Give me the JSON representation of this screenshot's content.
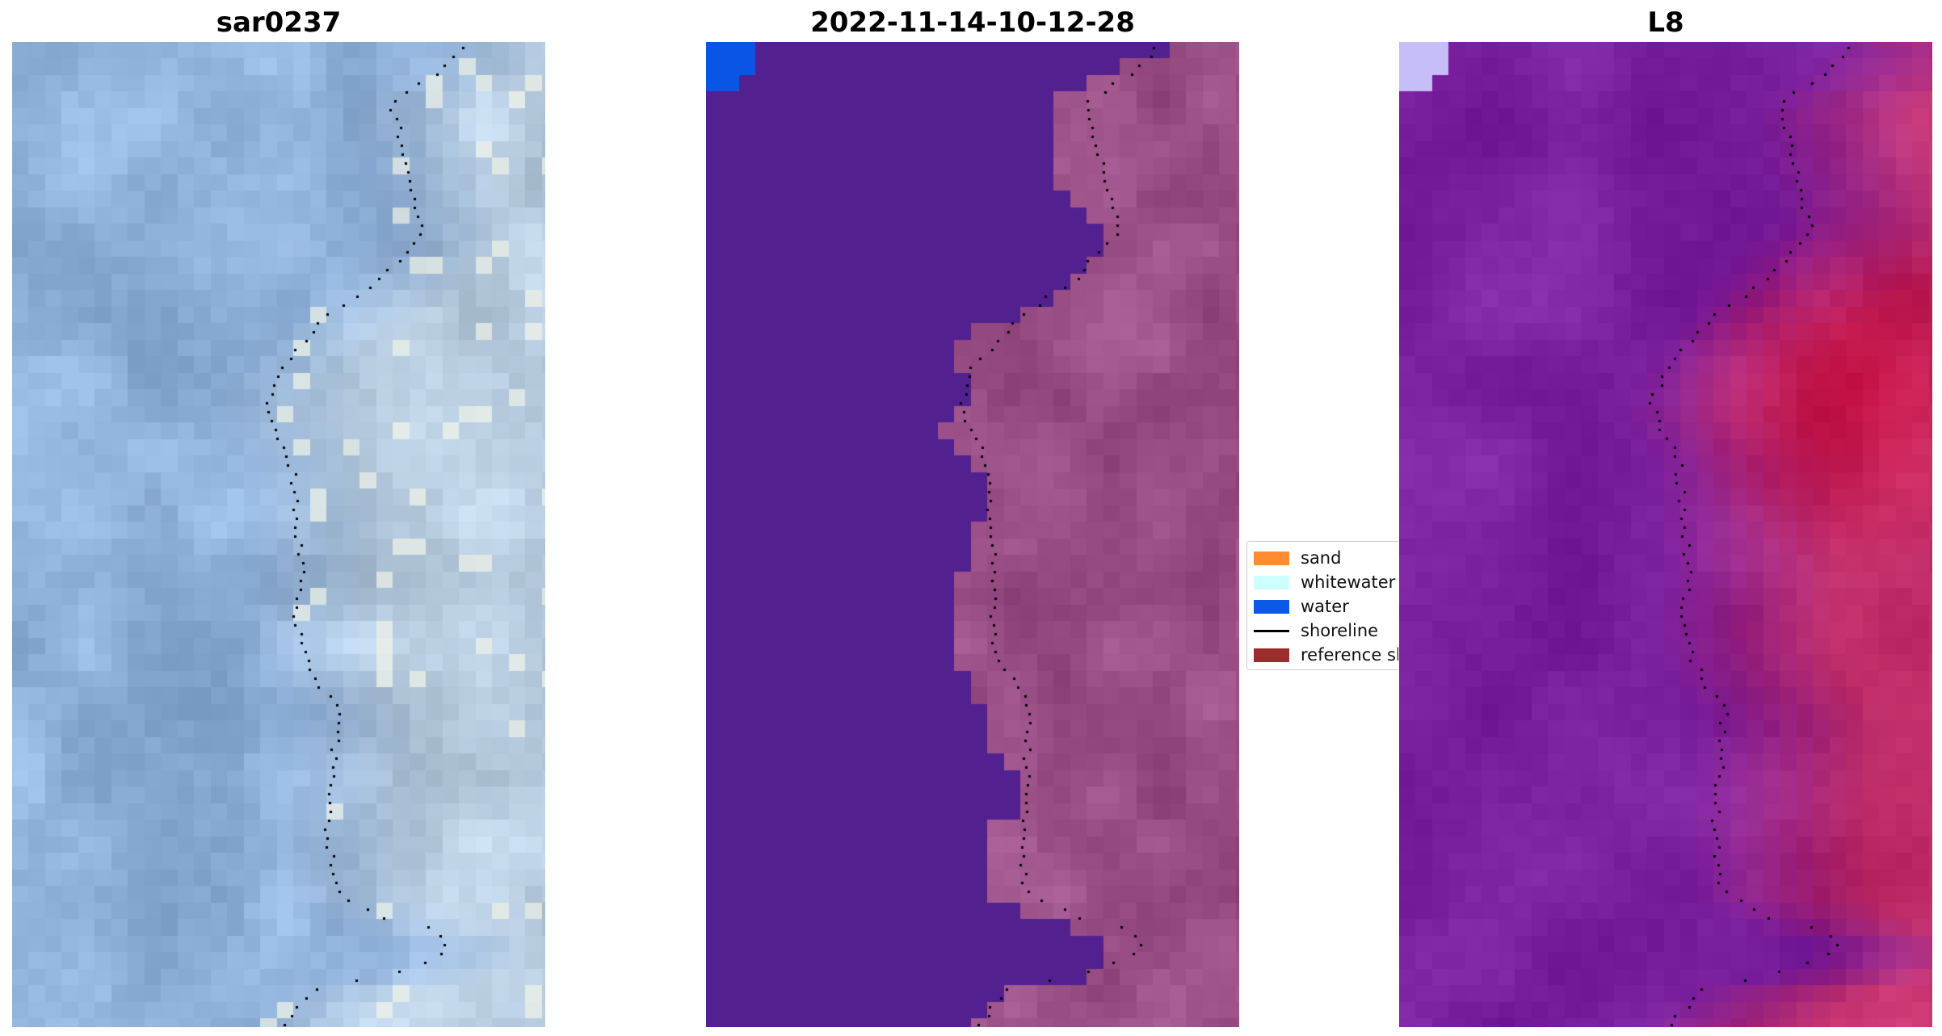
{
  "chart_data": [
    {
      "type": "heatmap",
      "title": "sar0237",
      "content": "satellite RGB image (blue-grey water on left, lighter sand/whitewater on right) with detected shoreline drawn as black dotted line",
      "palette": {
        "water": "#8fb0d3",
        "land": "#c3d5dd"
      },
      "axis": "off"
    },
    {
      "type": "heatmap",
      "title": "2022-11-14-10-12-28",
      "content": "classified image: water pixels in purple-blue, land pixels in muted magenta, a few bright water pixels at top-left; shoreline dotted",
      "palette": {
        "class_water": "#53208f",
        "land": "#9a4f86",
        "water_legend": "#0a55e6"
      },
      "axis": "off"
    },
    {
      "type": "heatmap",
      "title": "L8",
      "content": "MNDWI-style index image: purple to crimson gradient (water purple, land crimson), shoreline dotted",
      "palette": {
        "water": "#7a1f9e",
        "land": "#c22f6a",
        "hotspot": "#c30b3d"
      },
      "axis": "off"
    }
  ],
  "legend": {
    "items": [
      {
        "label": "sand",
        "color": "#ff8c32",
        "kind": "patch"
      },
      {
        "label": "whitewater",
        "color": "#cdffff",
        "kind": "patch"
      },
      {
        "label": "water",
        "color": "#0a5ae6",
        "kind": "patch"
      },
      {
        "label": "shoreline",
        "color": "#000000",
        "kind": "line"
      },
      {
        "label": "reference sl",
        "color": "#9b2d2d",
        "kind": "patch"
      }
    ]
  }
}
